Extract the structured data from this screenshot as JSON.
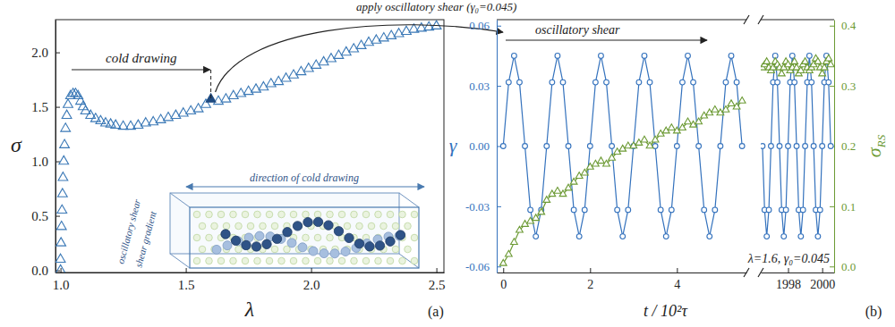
{
  "chart_data": [
    {
      "type": "scatter",
      "panel_label": "(a)",
      "xlabel": "λ",
      "ylabel": "σ",
      "xlim": [
        0.98,
        2.53
      ],
      "xticks": [
        {
          "value": 1,
          "label": "1.0"
        },
        1.5,
        {
          "value": 2,
          "label": "2.0"
        },
        2.5
      ],
      "ylim": [
        -0.02,
        2.3
      ],
      "yticks": [
        {
          "value": 0,
          "label": "0.0"
        },
        0.5,
        {
          "value": 1,
          "label": "1.0"
        },
        1.5,
        {
          "value": 2,
          "label": "2.0"
        }
      ],
      "series": [
        {
          "color": "#3a78b6",
          "marker": "triangle-open",
          "x": [
            1.0,
            1.0,
            1.002,
            1.004,
            1.006,
            1.008,
            1.01,
            1.013,
            1.016,
            1.02,
            1.025,
            1.03,
            1.04,
            1.05,
            1.06,
            1.07,
            1.08,
            1.09,
            1.1,
            1.12,
            1.14,
            1.16,
            1.18,
            1.2,
            1.22,
            1.25,
            1.28,
            1.31,
            1.34,
            1.37,
            1.4,
            1.43,
            1.46,
            1.49,
            1.52,
            1.55,
            1.58,
            1.63,
            1.66,
            1.69,
            1.72,
            1.75,
            1.78,
            1.81,
            1.84,
            1.87,
            1.9,
            1.93,
            1.96,
            1.99,
            2.02,
            2.05,
            2.08,
            2.11,
            2.14,
            2.17,
            2.2,
            2.23,
            2.26,
            2.29,
            2.32,
            2.35,
            2.38,
            2.41,
            2.44,
            2.47,
            2.5
          ],
          "values": [
            0.0,
            0.1,
            0.25,
            0.4,
            0.55,
            0.7,
            0.85,
            1.0,
            1.15,
            1.3,
            1.42,
            1.52,
            1.6,
            1.62,
            1.62,
            1.6,
            1.55,
            1.5,
            1.46,
            1.42,
            1.39,
            1.37,
            1.35,
            1.34,
            1.33,
            1.32,
            1.32,
            1.33,
            1.35,
            1.36,
            1.38,
            1.4,
            1.42,
            1.44,
            1.46,
            1.48,
            1.52,
            1.55,
            1.57,
            1.6,
            1.62,
            1.64,
            1.66,
            1.68,
            1.71,
            1.73,
            1.76,
            1.79,
            1.82,
            1.85,
            1.88,
            1.91,
            1.94,
            1.97,
            2.0,
            2.03,
            2.06,
            2.09,
            2.11,
            2.13,
            2.15,
            2.17,
            2.19,
            2.21,
            2.22,
            2.23,
            2.24
          ]
        },
        {
          "color": "#1f4a80",
          "marker": "triangle",
          "x": [
            1.6
          ],
          "values": [
            1.57
          ]
        }
      ],
      "reference_lines": [
        {
          "x": 1.6,
          "line_style": "dashed"
        }
      ],
      "annotations": [
        "cold drawing",
        "apply oscillatory shear (γ₀=0.045)"
      ],
      "inset_labels": [
        "direction of cold drawing",
        "oscillatory shear",
        "shear gradient"
      ]
    },
    {
      "type": "line",
      "xlabel": "t / 10²τ",
      "ylabel": "γ",
      "xlim": [
        -0.15,
        5.6
      ],
      "xticks": [
        0,
        2,
        4
      ],
      "ylim": [
        -0.063,
        0.063
      ],
      "yticks": [
        -0.06,
        -0.03,
        {
          "value": 0,
          "label": "0.00"
        },
        0.03,
        0.06
      ],
      "y2lim": [
        -0.01,
        0.41
      ],
      "x": [
        0,
        0.125,
        0.25,
        0.375,
        0.5,
        0.625,
        0.75,
        0.875,
        1,
        1.125,
        1.25,
        1.375,
        1.5,
        1.625,
        1.75,
        1.875,
        2,
        2.125,
        2.25,
        2.375,
        2.5,
        2.625,
        2.75,
        2.875,
        3,
        3.125,
        3.25,
        3.375,
        3.5,
        3.625,
        3.75,
        3.875,
        4,
        4.125,
        4.25,
        4.375,
        4.5,
        4.625,
        4.75,
        4.875,
        5,
        5.125,
        5.25,
        5.375,
        5.5
      ],
      "series": [
        {
          "color": "#3472bd",
          "marker": "circle-open",
          "values": [
            0,
            0.0318,
            0.045,
            0.0318,
            0,
            -0.0318,
            -0.045,
            -0.0318,
            0,
            0.0318,
            0.045,
            0.0318,
            0,
            -0.0318,
            -0.045,
            -0.0318,
            0,
            0.0318,
            0.045,
            0.0318,
            0,
            -0.0318,
            -0.045,
            -0.0318,
            0,
            0.0318,
            0.045,
            0.0318,
            0,
            -0.0318,
            -0.045,
            -0.0318,
            0,
            0.0318,
            0.045,
            0.0318,
            0,
            -0.0318,
            -0.045,
            -0.0318,
            0,
            0.0318,
            0.045,
            0.0318,
            0
          ]
        },
        {
          "color": "#6c9a34",
          "marker": "triangle-open",
          "axis": "y2",
          "values": [
            0.005,
            0.02,
            0.04,
            0.06,
            0.07,
            0.075,
            0.08,
            0.09,
            0.11,
            0.12,
            0.125,
            0.12,
            0.13,
            0.14,
            0.15,
            0.155,
            0.165,
            0.17,
            0.175,
            0.17,
            0.18,
            0.19,
            0.195,
            0.2,
            0.2,
            0.205,
            0.21,
            0.2,
            0.21,
            0.22,
            0.225,
            0.23,
            0.225,
            0.23,
            0.24,
            0.235,
            0.24,
            0.25,
            0.255,
            0.26,
            0.255,
            0.26,
            0.27,
            0.265,
            0.275
          ]
        }
      ],
      "annotations": [
        "oscillatory shear"
      ]
    },
    {
      "type": "line",
      "panel_label": "(b)",
      "y2label": [
        "σ",
        "RS"
      ],
      "xlim": [
        1996.4,
        2000.7
      ],
      "xticks": [
        1998,
        2000
      ],
      "ylim": [
        -0.063,
        0.063
      ],
      "y2lim": [
        -0.01,
        0.41
      ],
      "y2ticks": [
        {
          "value": 0,
          "label": "0.0"
        },
        0.1,
        0.2,
        0.3,
        0.4
      ],
      "x": [
        1996.5,
        1996.625,
        1996.75,
        1996.875,
        1997,
        1997.125,
        1997.25,
        1997.375,
        1997.5,
        1997.625,
        1997.75,
        1997.875,
        1998,
        1998.125,
        1998.25,
        1998.375,
        1998.5,
        1998.625,
        1998.75,
        1998.875,
        1999,
        1999.125,
        1999.25,
        1999.375,
        1999.5,
        1999.625,
        1999.75,
        1999.875,
        2000,
        2000.125,
        2000.25,
        2000.375,
        2000.5
      ],
      "series": [
        {
          "color": "#3472bd",
          "marker": "circle-open",
          "values": [
            0,
            -0.0318,
            -0.045,
            -0.0318,
            0,
            0.0318,
            0.045,
            0.0318,
            0,
            -0.0318,
            -0.045,
            -0.0318,
            0,
            0.0318,
            0.045,
            0.0318,
            0,
            -0.0318,
            -0.045,
            -0.0318,
            0,
            0.0318,
            0.045,
            0.0318,
            0,
            -0.0318,
            -0.045,
            -0.0318,
            0,
            0.0318,
            0.045,
            0.0318,
            0
          ]
        },
        {
          "color": "#6c9a34",
          "marker": "triangle-open",
          "axis": "y2",
          "values": [
            0.33,
            0.335,
            0.34,
            0.33,
            0.325,
            0.33,
            0.34,
            0.335,
            0.33,
            0.32,
            0.33,
            0.34,
            0.335,
            0.325,
            0.33,
            0.34,
            0.33,
            0.32,
            0.325,
            0.335,
            0.34,
            0.33,
            0.325,
            0.33,
            0.335,
            0.345,
            0.34,
            0.33,
            0.32,
            0.33,
            0.34,
            0.345,
            0.335
          ]
        }
      ],
      "annotations": [
        "λ=1.6, γ₀=0.045"
      ]
    }
  ]
}
